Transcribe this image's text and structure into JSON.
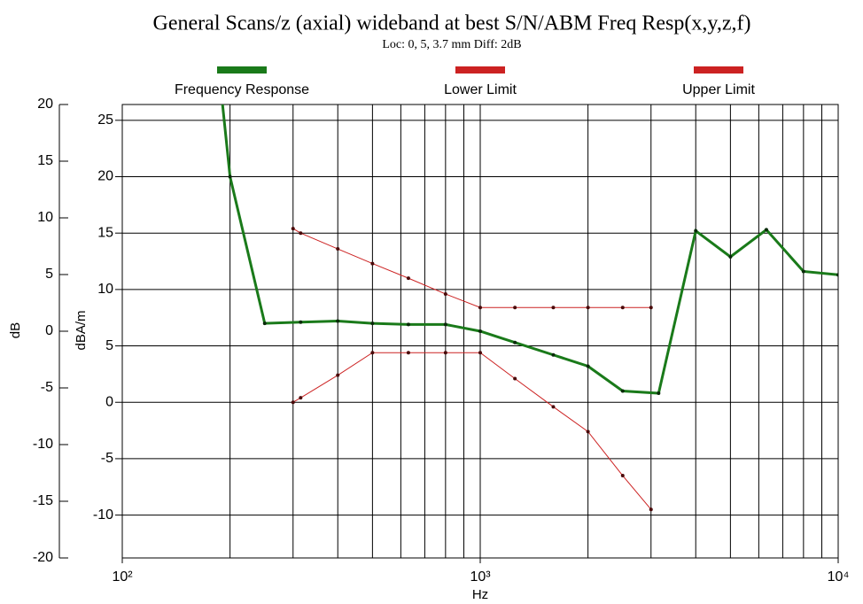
{
  "chart_data": {
    "type": "line",
    "title": "General Scans/z (axial) wideband at best S/N/ABM Freq Resp(x,y,z,f)",
    "subtitle": "Loc: 0, 5, 3.7 mm Diff: 2dB",
    "xlabel": "Hz",
    "ylabel": "dB",
    "y2label": "dBA/m",
    "xscale": "log",
    "grid": true,
    "legend": "top",
    "xlim": [
      100,
      10000
    ],
    "xticks": [
      {
        "value": 100,
        "label": "10²"
      },
      {
        "value": 1000,
        "label": "10³"
      },
      {
        "value": 10000,
        "label": "10⁴"
      }
    ],
    "xgrid": [
      200,
      300,
      400,
      500,
      600,
      700,
      800,
      900,
      1000,
      2000,
      3000,
      4000,
      5000,
      6000,
      7000,
      8000,
      9000
    ],
    "ylim": [
      -20,
      20
    ],
    "yticks": [
      -20,
      -15,
      -10,
      -5,
      0,
      5,
      10,
      15,
      20
    ],
    "y2lim": [
      -13.8,
      26.4
    ],
    "y2ticks": [
      -10,
      -5,
      0,
      5,
      10,
      15,
      20,
      25
    ],
    "series": [
      {
        "name": "Frequency Response",
        "color": "#1a7a1a",
        "axis": "y2",
        "x": [
          180,
          200,
          250,
          315,
          400,
          500,
          630,
          800,
          1000,
          1250,
          1600,
          2000,
          2500,
          3150,
          4000,
          5000,
          6300,
          8000,
          10000
        ],
        "values": [
          34,
          20,
          7,
          7.1,
          7.2,
          7,
          6.9,
          6.9,
          6.3,
          5.3,
          4.2,
          3.2,
          1,
          0.8,
          15.2,
          12.9,
          15.3,
          11.6,
          11.3
        ]
      },
      {
        "name": "Lower Limit",
        "color": "#cc2222",
        "axis": "y2",
        "x": [
          300,
          315,
          400,
          500,
          630,
          800,
          1000,
          1250,
          1600,
          2000,
          2500,
          3000
        ],
        "values": [
          0,
          0.4,
          2.4,
          4.4,
          4.4,
          4.4,
          4.4,
          2.1,
          -0.4,
          -2.6,
          -6.5,
          -9.5
        ]
      },
      {
        "name": "Upper Limit",
        "color": "#cc2222",
        "axis": "y2",
        "x": [
          300,
          315,
          400,
          500,
          630,
          800,
          1000,
          1250,
          1600,
          2000,
          2500,
          3000
        ],
        "values": [
          15.4,
          15,
          13.6,
          12.3,
          11,
          9.6,
          8.4,
          8.4,
          8.4,
          8.4,
          8.4,
          8.4
        ]
      }
    ]
  }
}
